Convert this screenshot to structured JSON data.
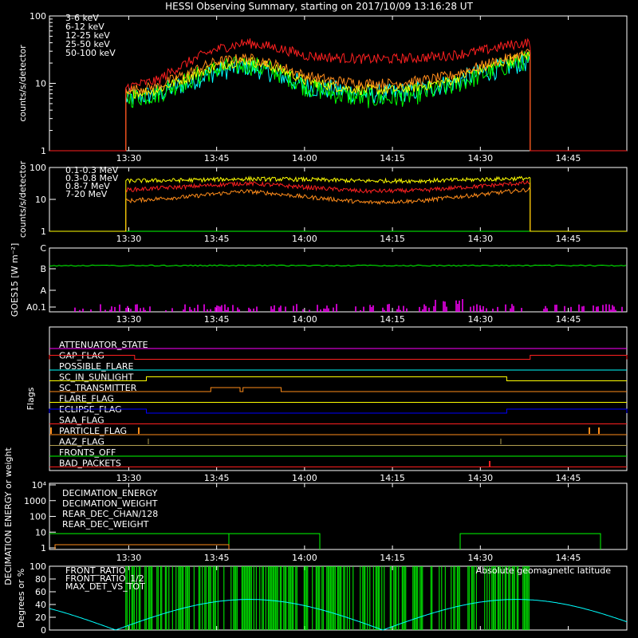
{
  "title": "HESSI Observing Summary, starting on 2017/10/09 13:16:28 UT",
  "time_ticks": [
    "13:30",
    "13:45",
    "14:00",
    "14:15",
    "14:30",
    "14:45"
  ],
  "colors": {
    "red": "#ff2020",
    "orange": "#ff8c1a",
    "yellow": "#ffff00",
    "green": "#00ff00",
    "cyan": "#00ffff",
    "magenta": "#ff00ff",
    "blue": "#0000ff",
    "olive": "#b4a050",
    "white": "#ffffff"
  },
  "chart_data": [
    {
      "id": "low_energy",
      "type": "line",
      "ylabel": "counts/s/detector",
      "yscale": "log",
      "ylim": [
        1,
        100
      ],
      "ytick_labels": [
        "1",
        "10",
        "100"
      ],
      "legend_placement": "top-left",
      "time_range": [
        "13:16:28",
        "14:55:00"
      ],
      "data_interval": [
        "13:29:30",
        "14:38:30"
      ],
      "series": [
        {
          "name": "3-6 keV",
          "color": "#ff2020",
          "times": [
            "13:30",
            "13:35",
            "13:40",
            "13:45",
            "13:50",
            "13:55",
            "14:00",
            "14:05",
            "14:10",
            "14:15",
            "14:20",
            "14:25",
            "14:30",
            "14:35",
            "14:38"
          ],
          "values": [
            9,
            11,
            20,
            32,
            40,
            34,
            26,
            24,
            23,
            23,
            24,
            26,
            30,
            37,
            40
          ]
        },
        {
          "name": "6-12 keV",
          "color": "#ff8c1a",
          "times": [
            "13:30",
            "13:35",
            "13:40",
            "13:45",
            "13:50",
            "13:55",
            "14:00",
            "14:05",
            "14:10",
            "14:15",
            "14:20",
            "14:25",
            "14:30",
            "14:35",
            "14:38"
          ],
          "values": [
            8,
            9,
            14,
            21,
            24,
            19,
            13,
            11,
            10,
            10,
            11,
            13,
            18,
            24,
            28
          ]
        },
        {
          "name": "12-25 keV",
          "color": "#ffff00",
          "times": [
            "13:30",
            "13:35",
            "13:40",
            "13:45",
            "13:50",
            "13:55",
            "14:00",
            "14:05",
            "14:10",
            "14:15",
            "14:20",
            "14:25",
            "14:30",
            "14:35",
            "14:38"
          ],
          "values": [
            7,
            8,
            12,
            18,
            22,
            17,
            11,
            9,
            8,
            8,
            9,
            11,
            16,
            22,
            26
          ]
        },
        {
          "name": "25-50 keV",
          "color": "#00ff00",
          "times": [
            "13:30",
            "13:35",
            "13:40",
            "13:45",
            "13:50",
            "13:55",
            "14:00",
            "14:05",
            "14:10",
            "14:15",
            "14:20",
            "14:25",
            "14:30",
            "14:35",
            "14:38"
          ],
          "values": [
            6,
            7,
            11,
            16,
            19,
            15,
            9,
            7,
            6,
            6,
            7,
            9,
            13,
            19,
            22
          ]
        },
        {
          "name": "50-100 keV",
          "color": "#00ffff",
          "times": [
            "13:30",
            "13:35",
            "13:40",
            "13:45",
            "13:50",
            "13:55",
            "14:00",
            "14:05",
            "14:10",
            "14:15",
            "14:20",
            "14:25",
            "14:30",
            "14:35",
            "14:38"
          ],
          "values": [
            6,
            7,
            10,
            15,
            18,
            14,
            9,
            8,
            7,
            7,
            8,
            10,
            14,
            18,
            21
          ]
        }
      ]
    },
    {
      "id": "high_energy",
      "type": "line",
      "ylabel": "counts/s/detector",
      "yscale": "log",
      "ylim": [
        1,
        100
      ],
      "ytick_labels": [
        "1",
        "10",
        "100"
      ],
      "legend_placement": "top-left",
      "series": [
        {
          "name": "0.1-0.3 MeV",
          "color": "#ff2020",
          "times": [
            "13:30",
            "13:40",
            "13:50",
            "14:00",
            "14:10",
            "14:20",
            "14:30",
            "14:38"
          ],
          "values": [
            20,
            25,
            32,
            24,
            18,
            19,
            26,
            33
          ]
        },
        {
          "name": "0.3-0.8 MeV",
          "color": "#ff8c1a",
          "times": [
            "13:30",
            "13:40",
            "13:50",
            "14:00",
            "14:10",
            "14:20",
            "14:30",
            "14:38"
          ],
          "values": [
            9,
            12,
            18,
            12,
            8,
            9,
            14,
            20
          ]
        },
        {
          "name": "0.8-7 MeV",
          "color": "#ffff00",
          "times": [
            "13:30",
            "13:40",
            "13:50",
            "14:00",
            "14:10",
            "14:20",
            "14:30",
            "14:38"
          ],
          "values": [
            38,
            40,
            44,
            42,
            38,
            38,
            42,
            46
          ]
        },
        {
          "name": "7-20 MeV",
          "color": "#00ff00",
          "times": [
            "13:30",
            "14:38"
          ],
          "values": [
            1,
            1
          ]
        }
      ]
    },
    {
      "id": "goes",
      "type": "line",
      "ylabel": "GOES15 [W m⁻²]",
      "ytick_labels": [
        "A0.1",
        "A",
        "B",
        "C"
      ],
      "series": [
        {
          "name": "GOES15",
          "color": "#00ff00",
          "level": "B"
        }
      ]
    },
    {
      "id": "flags",
      "type": "line",
      "ylabel": "Flags",
      "series": [
        {
          "name": "ATTENUATOR_STATE",
          "color": "#ff00ff"
        },
        {
          "name": "GAP_FLAG",
          "color": "#ff2020",
          "on_intervals": [
            [
              "13:16:28",
              "13:31:00"
            ],
            [
              "14:38:30",
              "14:55:00"
            ]
          ]
        },
        {
          "name": "POSSIBLE_FLARE",
          "color": "#00ffff"
        },
        {
          "name": "SC_IN_SUNLIGHT",
          "color": "#ffff00",
          "on_intervals": [
            [
              "13:33:00",
              "14:34:30"
            ]
          ]
        },
        {
          "name": "SC_TRANSMITTER",
          "color": "#ff8c1a",
          "on_intervals": [
            [
              "13:44:00",
              "13:49:00"
            ],
            [
              "13:49:30",
              "13:56:00"
            ]
          ]
        },
        {
          "name": "FLARE_FLAG",
          "color": "#ffff00"
        },
        {
          "name": "ECLIPSE_FLAG",
          "color": "#0000ff",
          "on_intervals": [
            [
              "13:16:28",
              "13:33:00"
            ],
            [
              "14:34:30",
              "14:55:00"
            ]
          ]
        },
        {
          "name": "SAA_FLAG",
          "color": "#ff2020"
        },
        {
          "name": "PARTICLE_FLAG",
          "color": "#ff8c1a"
        },
        {
          "name": "AAZ_FLAG",
          "color": "#b4a050"
        },
        {
          "name": "FRONTS_OFF",
          "color": "#00ff00"
        },
        {
          "name": "BAD_PACKETS",
          "color": "#ff2020"
        }
      ]
    },
    {
      "id": "decimation",
      "type": "line",
      "ylabel": "DECIMATION ENERGY or weight",
      "yscale": "log",
      "ylim": [
        1,
        10000
      ],
      "ytick_labels": [
        "1",
        "10",
        "100",
        "1000",
        "10⁴"
      ],
      "series": [
        {
          "name": "DECIMATION_ENERGY",
          "color": "#00ff00"
        },
        {
          "name": "DECIMATION_WEIGHT",
          "color": "#ff8c1a"
        },
        {
          "name": "REAR_DEC_CHAN/128",
          "color": "#00ffff"
        },
        {
          "name": "REAR_DEC_WEIGHT",
          "color": "#b4a050"
        }
      ]
    },
    {
      "id": "ratios",
      "type": "line",
      "ylabel": "Degrees or %",
      "ylim": [
        0,
        100
      ],
      "ytick_labels": [
        "0",
        "20",
        "40",
        "60",
        "80",
        "100"
      ],
      "series": [
        {
          "name": "FRONT_RATIO",
          "color": "#00ff00"
        },
        {
          "name": "FRONT_RATIO_1/2",
          "color": "#ffff00"
        },
        {
          "name": "MAX_DET_VS_TOT",
          "color": "#ff8c1a"
        },
        {
          "name": "Absolute geomagnetic latitude",
          "color": "#00ffff"
        }
      ]
    }
  ]
}
